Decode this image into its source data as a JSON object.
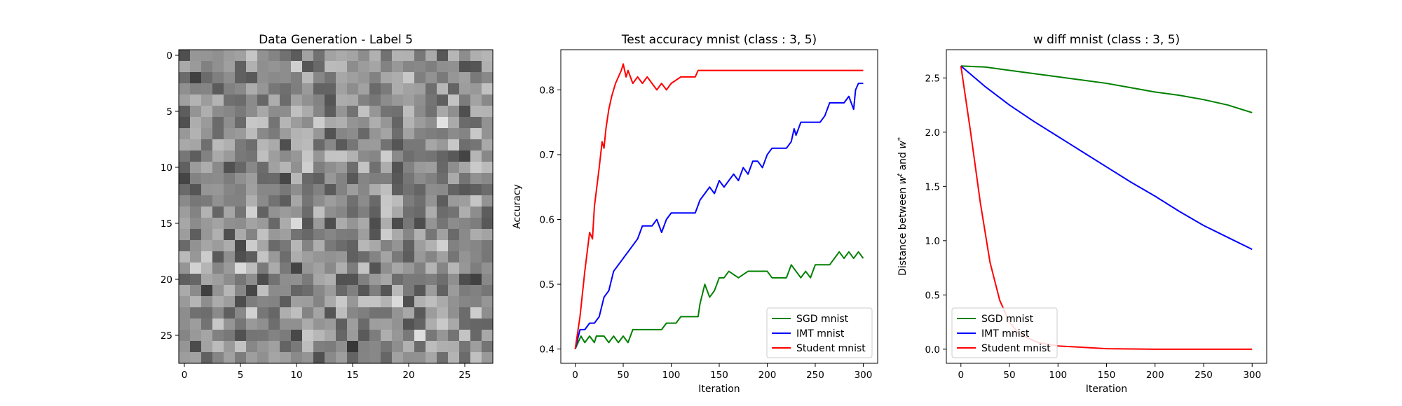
{
  "chart_data": [
    {
      "type": "heatmap",
      "title": "Data Generation - Label 5",
      "colormap": "gray",
      "grid_size": 28,
      "xticks": [
        0,
        5,
        10,
        15,
        20,
        25
      ],
      "yticks": [
        0,
        5,
        10,
        15,
        20,
        25
      ],
      "xlim": [
        -0.5,
        27.5
      ],
      "ylim": [
        27.5,
        -0.5
      ],
      "seed": 12345
    },
    {
      "type": "line",
      "title": "Test accuracy mnist (class : 3, 5)",
      "xlabel": "Iteration",
      "ylabel": "Accuracy",
      "xlim": [
        -15,
        315
      ],
      "ylim": [
        0.378,
        0.862
      ],
      "xticks": [
        0,
        50,
        100,
        150,
        200,
        250,
        300
      ],
      "yticks": [
        0.4,
        0.5,
        0.6,
        0.7,
        0.8
      ],
      "legend_position": "lower-right",
      "series": [
        {
          "name": "SGD mnist",
          "color": "#008000",
          "points": [
            [
              0,
              0.4
            ],
            [
              3,
              0.41
            ],
            [
              6,
              0.42
            ],
            [
              10,
              0.41
            ],
            [
              15,
              0.42
            ],
            [
              20,
              0.41
            ],
            [
              22,
              0.42
            ],
            [
              30,
              0.42
            ],
            [
              35,
              0.41
            ],
            [
              40,
              0.42
            ],
            [
              45,
              0.41
            ],
            [
              50,
              0.42
            ],
            [
              55,
              0.41
            ],
            [
              60,
              0.43
            ],
            [
              90,
              0.43
            ],
            [
              95,
              0.44
            ],
            [
              105,
              0.44
            ],
            [
              110,
              0.45
            ],
            [
              128,
              0.45
            ],
            [
              130,
              0.47
            ],
            [
              135,
              0.5
            ],
            [
              140,
              0.48
            ],
            [
              145,
              0.49
            ],
            [
              150,
              0.51
            ],
            [
              155,
              0.51
            ],
            [
              160,
              0.52
            ],
            [
              170,
              0.51
            ],
            [
              180,
              0.52
            ],
            [
              200,
              0.52
            ],
            [
              205,
              0.51
            ],
            [
              220,
              0.51
            ],
            [
              225,
              0.53
            ],
            [
              230,
              0.52
            ],
            [
              235,
              0.51
            ],
            [
              240,
              0.52
            ],
            [
              245,
              0.51
            ],
            [
              250,
              0.53
            ],
            [
              265,
              0.53
            ],
            [
              270,
              0.54
            ],
            [
              275,
              0.55
            ],
            [
              280,
              0.54
            ],
            [
              285,
              0.55
            ],
            [
              290,
              0.54
            ],
            [
              295,
              0.55
            ],
            [
              300,
              0.54
            ]
          ]
        },
        {
          "name": "IMT mnist",
          "color": "#0000ff",
          "points": [
            [
              0,
              0.4
            ],
            [
              5,
              0.43
            ],
            [
              10,
              0.43
            ],
            [
              15,
              0.44
            ],
            [
              20,
              0.44
            ],
            [
              25,
              0.45
            ],
            [
              30,
              0.48
            ],
            [
              35,
              0.49
            ],
            [
              40,
              0.52
            ],
            [
              45,
              0.53
            ],
            [
              50,
              0.54
            ],
            [
              55,
              0.55
            ],
            [
              60,
              0.56
            ],
            [
              65,
              0.57
            ],
            [
              70,
              0.59
            ],
            [
              80,
              0.59
            ],
            [
              85,
              0.6
            ],
            [
              90,
              0.58
            ],
            [
              95,
              0.6
            ],
            [
              100,
              0.61
            ],
            [
              125,
              0.61
            ],
            [
              130,
              0.63
            ],
            [
              140,
              0.65
            ],
            [
              145,
              0.64
            ],
            [
              150,
              0.66
            ],
            [
              155,
              0.65
            ],
            [
              160,
              0.66
            ],
            [
              165,
              0.67
            ],
            [
              170,
              0.66
            ],
            [
              175,
              0.68
            ],
            [
              180,
              0.67
            ],
            [
              185,
              0.69
            ],
            [
              190,
              0.69
            ],
            [
              195,
              0.68
            ],
            [
              200,
              0.7
            ],
            [
              205,
              0.71
            ],
            [
              220,
              0.71
            ],
            [
              225,
              0.72
            ],
            [
              228,
              0.74
            ],
            [
              230,
              0.73
            ],
            [
              235,
              0.75
            ],
            [
              255,
              0.75
            ],
            [
              260,
              0.76
            ],
            [
              265,
              0.78
            ],
            [
              280,
              0.78
            ],
            [
              285,
              0.79
            ],
            [
              290,
              0.77
            ],
            [
              292,
              0.8
            ],
            [
              295,
              0.81
            ],
            [
              300,
              0.81
            ]
          ]
        },
        {
          "name": "Student mnist",
          "color": "#ff0000",
          "points": [
            [
              0,
              0.4
            ],
            [
              5,
              0.45
            ],
            [
              10,
              0.52
            ],
            [
              15,
              0.58
            ],
            [
              18,
              0.57
            ],
            [
              20,
              0.62
            ],
            [
              25,
              0.68
            ],
            [
              28,
              0.72
            ],
            [
              30,
              0.71
            ],
            [
              32,
              0.74
            ],
            [
              35,
              0.77
            ],
            [
              38,
              0.79
            ],
            [
              40,
              0.8
            ],
            [
              42,
              0.81
            ],
            [
              45,
              0.82
            ],
            [
              48,
              0.83
            ],
            [
              50,
              0.84
            ],
            [
              53,
              0.82
            ],
            [
              55,
              0.83
            ],
            [
              60,
              0.81
            ],
            [
              65,
              0.82
            ],
            [
              70,
              0.81
            ],
            [
              75,
              0.82
            ],
            [
              80,
              0.81
            ],
            [
              85,
              0.8
            ],
            [
              90,
              0.81
            ],
            [
              95,
              0.8
            ],
            [
              100,
              0.81
            ],
            [
              110,
              0.82
            ],
            [
              125,
              0.82
            ],
            [
              128,
              0.83
            ],
            [
              300,
              0.83
            ]
          ]
        }
      ]
    },
    {
      "type": "line",
      "title": "w diff mnist (class : 3, 5)",
      "xlabel": "Iteration",
      "ylabel": "Distance between w^t and w^*",
      "xlim": [
        -15,
        315
      ],
      "ylim": [
        -0.13,
        2.76
      ],
      "xticks": [
        0,
        50,
        100,
        150,
        200,
        250,
        300
      ],
      "yticks": [
        0.0,
        0.5,
        1.0,
        1.5,
        2.0,
        2.5
      ],
      "legend_position": "lower-left",
      "series": [
        {
          "name": "SGD mnist",
          "color": "#008000",
          "points": [
            [
              0,
              2.61
            ],
            [
              25,
              2.6
            ],
            [
              50,
              2.57
            ],
            [
              75,
              2.54
            ],
            [
              100,
              2.51
            ],
            [
              125,
              2.48
            ],
            [
              150,
              2.45
            ],
            [
              175,
              2.41
            ],
            [
              200,
              2.37
            ],
            [
              225,
              2.34
            ],
            [
              250,
              2.3
            ],
            [
              275,
              2.25
            ],
            [
              300,
              2.18
            ]
          ]
        },
        {
          "name": "IMT mnist",
          "color": "#0000ff",
          "points": [
            [
              0,
              2.61
            ],
            [
              25,
              2.42
            ],
            [
              50,
              2.25
            ],
            [
              75,
              2.1
            ],
            [
              100,
              1.96
            ],
            [
              125,
              1.82
            ],
            [
              150,
              1.68
            ],
            [
              175,
              1.54
            ],
            [
              200,
              1.41
            ],
            [
              225,
              1.27
            ],
            [
              250,
              1.14
            ],
            [
              275,
              1.03
            ],
            [
              300,
              0.92
            ]
          ]
        },
        {
          "name": "Student mnist",
          "color": "#ff0000",
          "points": [
            [
              0,
              2.61
            ],
            [
              10,
              2.0
            ],
            [
              20,
              1.35
            ],
            [
              30,
              0.8
            ],
            [
              40,
              0.45
            ],
            [
              50,
              0.25
            ],
            [
              60,
              0.14
            ],
            [
              80,
              0.06
            ],
            [
              100,
              0.03
            ],
            [
              150,
              0.005
            ],
            [
              200,
              0.0
            ],
            [
              300,
              0.0
            ]
          ]
        }
      ]
    }
  ]
}
